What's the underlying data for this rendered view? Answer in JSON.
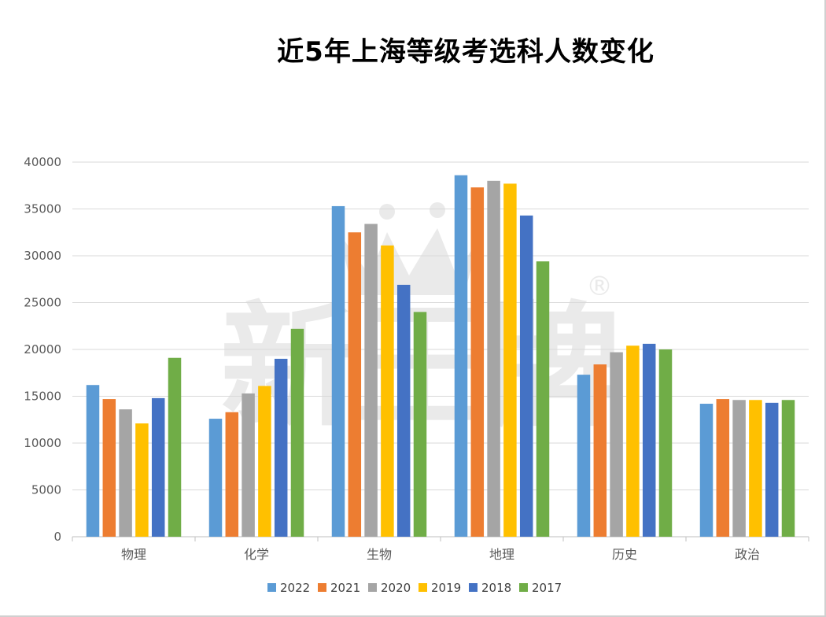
{
  "chart_data": {
    "type": "bar",
    "title": "近5年上海等级考选科人数变化",
    "categories": [
      "物理",
      "化学",
      "生物",
      "地理",
      "历史",
      "政治"
    ],
    "series": [
      {
        "name": "2022",
        "color": "#5B9BD5",
        "values": [
          16200,
          12600,
          35300,
          38600,
          17300,
          14200
        ]
      },
      {
        "name": "2021",
        "color": "#ED7D31",
        "values": [
          14700,
          13300,
          32500,
          37300,
          18400,
          14700
        ]
      },
      {
        "name": "2020",
        "color": "#A5A5A5",
        "values": [
          13600,
          15300,
          33400,
          38000,
          19700,
          14600
        ]
      },
      {
        "name": "2019",
        "color": "#FFC000",
        "values": [
          12100,
          16100,
          31100,
          37700,
          20400,
          14600
        ]
      },
      {
        "name": "2018",
        "color": "#4472C4",
        "values": [
          14800,
          19000,
          26900,
          34300,
          20600,
          14300
        ]
      },
      {
        "name": "2017",
        "color": "#70AD47",
        "values": [
          19100,
          22200,
          24000,
          29400,
          20000,
          14600
        ]
      }
    ],
    "yticks": [
      "0",
      "5000",
      "10000",
      "15000",
      "20000",
      "25000",
      "30000",
      "35000",
      "40000"
    ],
    "ylim": [
      0,
      40000
    ],
    "grid": true,
    "legend_position": "bottom",
    "xlabel": "",
    "ylabel": ""
  },
  "watermark": {
    "text": "新王牌",
    "mark": "®",
    "icon": "crown-icon"
  }
}
